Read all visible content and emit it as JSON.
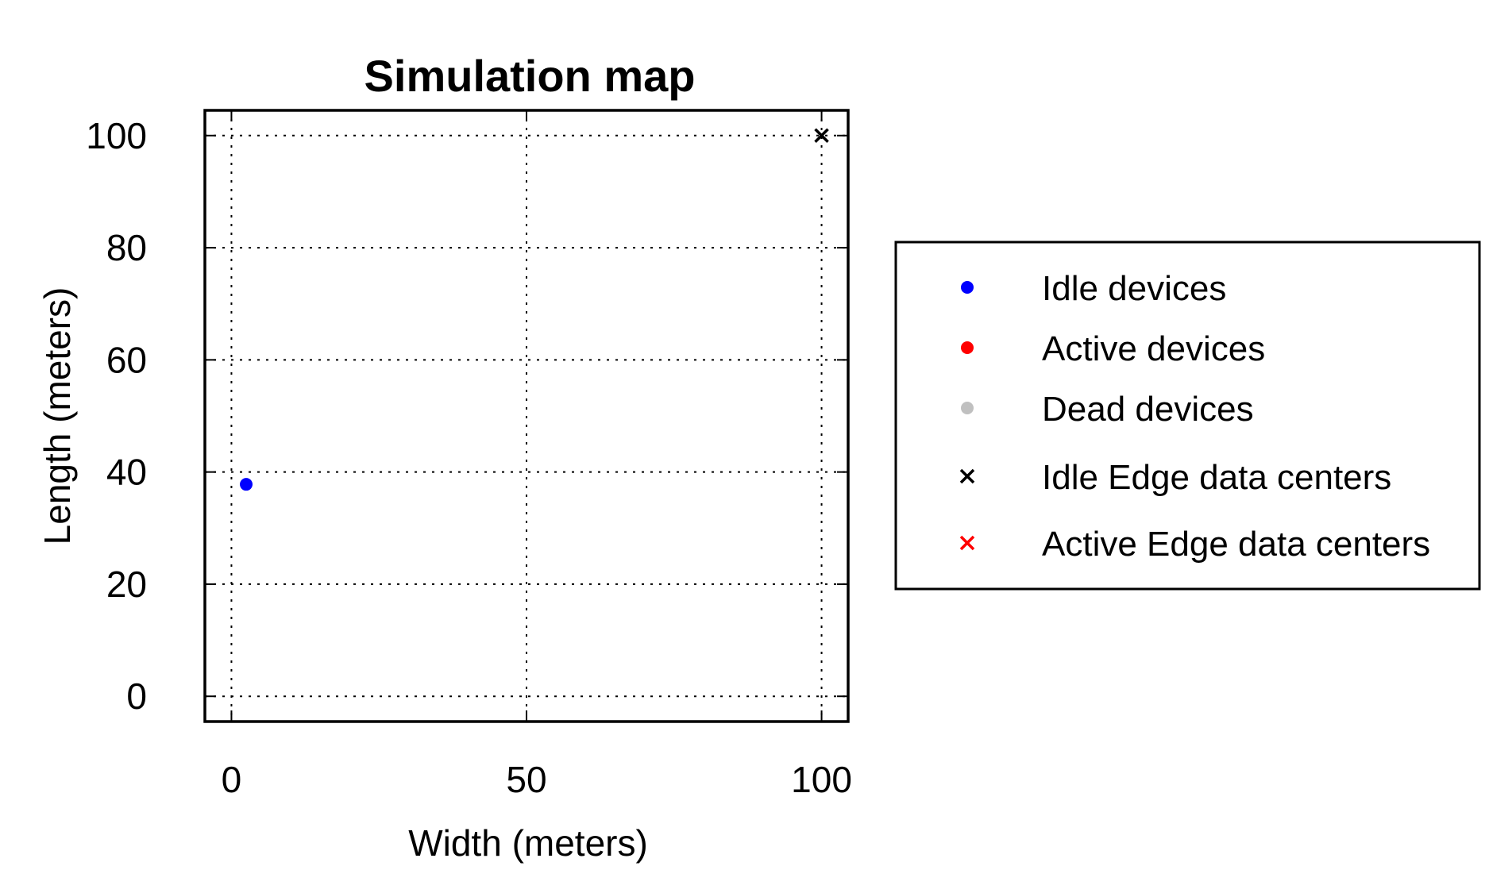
{
  "chart_data": {
    "type": "scatter",
    "title": "Simulation map",
    "xlabel": "Width (meters)",
    "ylabel": "Length (meters)",
    "xlim": [
      -4.5,
      104.5
    ],
    "ylim": [
      -4.5,
      104.5
    ],
    "xticks": [
      0,
      50,
      100
    ],
    "yticks": [
      0,
      20,
      40,
      60,
      80,
      100
    ],
    "xtick_labels": [
      "0",
      "50",
      "100"
    ],
    "ytick_labels": [
      "0",
      "20",
      "40",
      "60",
      "80",
      "100"
    ],
    "grid": true,
    "legend_position": "right",
    "series": [
      {
        "name": "Idle devices",
        "marker": "dot",
        "color": "#0000ff",
        "points": [
          {
            "x": 2.5,
            "y": 37.8
          }
        ]
      },
      {
        "name": "Active devices",
        "marker": "dot",
        "color": "#ff0000",
        "points": []
      },
      {
        "name": "Dead devices",
        "marker": "dot",
        "color": "#c0c0c0",
        "points": []
      },
      {
        "name": "Idle Edge data centers",
        "marker": "x",
        "color": "#000000",
        "points": [
          {
            "x": 100,
            "y": 100
          }
        ]
      },
      {
        "name": "Active Edge data centers",
        "marker": "x",
        "color": "#ff0000",
        "points": []
      }
    ]
  }
}
